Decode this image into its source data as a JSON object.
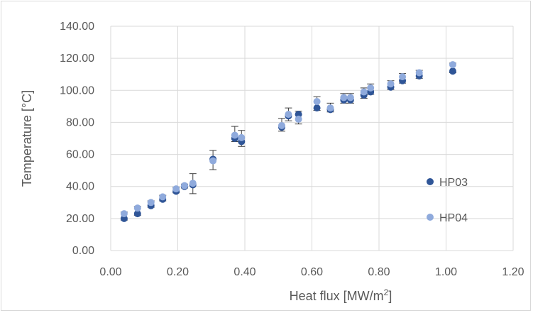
{
  "chart_data": {
    "type": "scatter",
    "title": "",
    "xlabel": "Heat flux [MW/m",
    "xlabel_sup": "2",
    "xlabel_end": "]",
    "ylabel": "Temperature [°C]",
    "xlim": [
      0,
      1.2
    ],
    "ylim": [
      0,
      140
    ],
    "x_ticks": [
      "0.00",
      "0.20",
      "0.40",
      "0.60",
      "0.80",
      "1.00",
      "1.20"
    ],
    "y_ticks": [
      "0.00",
      "20.00",
      "40.00",
      "60.00",
      "80.00",
      "100.00",
      "120.00",
      "140.00"
    ],
    "grid": true,
    "legend_position": "right",
    "series": [
      {
        "name": "HP03",
        "color": "#2f5597",
        "points": [
          {
            "x": 0.04,
            "y": 20.0
          },
          {
            "x": 0.08,
            "y": 23.0
          },
          {
            "x": 0.12,
            "y": 28.0
          },
          {
            "x": 0.155,
            "y": 32.0
          },
          {
            "x": 0.195,
            "y": 37.0
          },
          {
            "x": 0.22,
            "y": 40.0
          },
          {
            "x": 0.245,
            "y": 41.0
          },
          {
            "x": 0.305,
            "y": 57.0
          },
          {
            "x": 0.37,
            "y": 70.0
          },
          {
            "x": 0.39,
            "y": 68.0
          },
          {
            "x": 0.51,
            "y": 77.0
          },
          {
            "x": 0.53,
            "y": 84.0
          },
          {
            "x": 0.56,
            "y": 85.0
          },
          {
            "x": 0.615,
            "y": 89.0
          },
          {
            "x": 0.655,
            "y": 88.0
          },
          {
            "x": 0.695,
            "y": 94.0
          },
          {
            "x": 0.715,
            "y": 94.0
          },
          {
            "x": 0.755,
            "y": 97.0
          },
          {
            "x": 0.775,
            "y": 99.0
          },
          {
            "x": 0.835,
            "y": 102.0
          },
          {
            "x": 0.87,
            "y": 106.0
          },
          {
            "x": 0.92,
            "y": 109.0
          },
          {
            "x": 1.02,
            "y": 112.0
          }
        ]
      },
      {
        "name": "HP04",
        "color": "#8faadc",
        "points": [
          {
            "x": 0.04,
            "y": 23.0
          },
          {
            "x": 0.08,
            "y": 26.5
          },
          {
            "x": 0.12,
            "y": 30.0
          },
          {
            "x": 0.155,
            "y": 33.5
          },
          {
            "x": 0.195,
            "y": 38.5
          },
          {
            "x": 0.22,
            "y": 40.5
          },
          {
            "x": 0.245,
            "y": 42.0
          },
          {
            "x": 0.305,
            "y": 56.0
          },
          {
            "x": 0.37,
            "y": 72.0
          },
          {
            "x": 0.39,
            "y": 70.5
          },
          {
            "x": 0.51,
            "y": 78.0
          },
          {
            "x": 0.53,
            "y": 85.0
          },
          {
            "x": 0.56,
            "y": 82.0
          },
          {
            "x": 0.615,
            "y": 93.0
          },
          {
            "x": 0.655,
            "y": 89.0
          },
          {
            "x": 0.695,
            "y": 95.5
          },
          {
            "x": 0.715,
            "y": 95.5
          },
          {
            "x": 0.755,
            "y": 99.0
          },
          {
            "x": 0.775,
            "y": 101.5
          },
          {
            "x": 0.835,
            "y": 104.0
          },
          {
            "x": 0.87,
            "y": 108.5
          },
          {
            "x": 0.92,
            "y": 111.0
          },
          {
            "x": 1.02,
            "y": 116.0
          }
        ]
      }
    ],
    "error_bars": [
      {
        "x": 0.04,
        "low": 19.0,
        "high": 24.0
      },
      {
        "x": 0.08,
        "low": 22.0,
        "high": 27.5
      },
      {
        "x": 0.12,
        "low": 27.0,
        "high": 31.0
      },
      {
        "x": 0.155,
        "low": 31.0,
        "high": 34.5
      },
      {
        "x": 0.195,
        "low": 36.0,
        "high": 39.5
      },
      {
        "x": 0.22,
        "low": 39.0,
        "high": 41.5
      },
      {
        "x": 0.245,
        "low": 35.5,
        "high": 48.0
      },
      {
        "x": 0.305,
        "low": 50.5,
        "high": 62.5
      },
      {
        "x": 0.37,
        "low": 68.0,
        "high": 77.5
      },
      {
        "x": 0.39,
        "low": 65.0,
        "high": 75.0
      },
      {
        "x": 0.51,
        "low": 74.5,
        "high": 82.5
      },
      {
        "x": 0.53,
        "low": 81.0,
        "high": 89.0
      },
      {
        "x": 0.56,
        "low": 79.0,
        "high": 87.0
      },
      {
        "x": 0.615,
        "low": 87.5,
        "high": 96.0
      },
      {
        "x": 0.655,
        "low": 86.5,
        "high": 92.0
      },
      {
        "x": 0.695,
        "low": 92.0,
        "high": 98.0
      },
      {
        "x": 0.715,
        "low": 92.0,
        "high": 98.0
      },
      {
        "x": 0.755,
        "low": 95.0,
        "high": 101.5
      },
      {
        "x": 0.775,
        "low": 97.5,
        "high": 104.0
      },
      {
        "x": 0.835,
        "low": 100.5,
        "high": 106.0
      },
      {
        "x": 0.87,
        "low": 104.5,
        "high": 110.5
      },
      {
        "x": 0.92,
        "low": 107.5,
        "high": 112.5
      },
      {
        "x": 1.02,
        "low": 111.0,
        "high": 117.0
      }
    ]
  }
}
